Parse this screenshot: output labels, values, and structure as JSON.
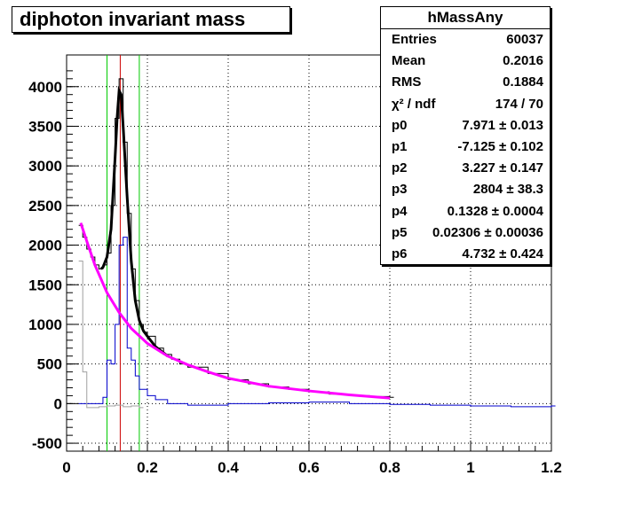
{
  "title": "diphoton invariant mass",
  "stats": {
    "name": "hMassAny",
    "rows": [
      {
        "label": "Entries",
        "value": "60037"
      },
      {
        "label": "Mean",
        "value": "0.2016"
      },
      {
        "label": "RMS",
        "value": "0.1884"
      },
      {
        "label": "χ² / ndf",
        "value": "174 / 70"
      },
      {
        "label": "p0",
        "value": "7.971 ± 0.013"
      },
      {
        "label": "p1",
        "value": "-7.125 ± 0.102"
      },
      {
        "label": "p2",
        "value": "3.227 ± 0.147"
      },
      {
        "label": "p3",
        "value": "2804 ± 38.3"
      },
      {
        "label": "p4",
        "value": "0.1328 ± 0.0004"
      },
      {
        "label": "p5",
        "value": "0.02306 ± 0.00036"
      },
      {
        "label": "p6",
        "value": "4.732 ± 0.424"
      }
    ]
  },
  "colors": {
    "total_hist": "#000000",
    "background_sub_hist": "#0000cc",
    "sideband_hist": "#a0a0a0",
    "fit_curve": "#000000",
    "background_curve": "#ff00ff",
    "window_lines": "#00cc00",
    "peak_line": "#cc0000"
  },
  "chart_data": {
    "type": "line",
    "title": "diphoton invariant mass",
    "xlabel": "",
    "ylabel": "",
    "xlim": [
      0,
      1.2
    ],
    "ylim": [
      -600,
      4400
    ],
    "xticks": [
      "0",
      "0.2",
      "0.4",
      "0.6",
      "0.8",
      "1",
      "1.2"
    ],
    "yticks": [
      "-500",
      "0",
      "500",
      "1000",
      "1500",
      "2000",
      "2500",
      "3000",
      "3500",
      "4000"
    ],
    "grid": true,
    "vertical_lines": {
      "window_low": 0.1,
      "window_high": 0.18,
      "peak": 0.1328
    },
    "series": [
      {
        "style": "histogram",
        "color_key": "total_hist",
        "x": [
          0.03,
          0.04,
          0.05,
          0.06,
          0.07,
          0.08,
          0.09,
          0.1,
          0.11,
          0.12,
          0.13,
          0.14,
          0.15,
          0.16,
          0.17,
          0.18,
          0.19,
          0.2,
          0.22,
          0.24,
          0.26,
          0.28,
          0.3,
          0.35,
          0.4,
          0.45,
          0.5,
          0.55,
          0.6,
          0.65,
          0.7,
          0.75,
          0.8
        ],
        "y": [
          2250,
          2100,
          1950,
          1850,
          1750,
          1700,
          1750,
          1900,
          2500,
          3600,
          4100,
          3300,
          2400,
          1700,
          1300,
          1000,
          900,
          850,
          700,
          620,
          560,
          500,
          460,
          380,
          300,
          250,
          210,
          180,
          150,
          120,
          100,
          90,
          80
        ]
      },
      {
        "style": "histogram",
        "color_key": "background_sub_hist",
        "x": [
          0.03,
          0.05,
          0.07,
          0.09,
          0.1,
          0.11,
          0.12,
          0.13,
          0.14,
          0.15,
          0.16,
          0.17,
          0.18,
          0.2,
          0.22,
          0.25,
          0.3,
          0.4,
          0.5,
          0.6,
          0.7,
          0.8,
          0.9,
          1.0,
          1.1,
          1.2
        ],
        "y": [
          0,
          0,
          0,
          80,
          550,
          500,
          1000,
          2000,
          2100,
          700,
          550,
          350,
          180,
          100,
          50,
          0,
          -20,
          0,
          10,
          20,
          0,
          -10,
          -20,
          -30,
          -40,
          -30
        ]
      },
      {
        "style": "histogram",
        "color_key": "sideband_hist",
        "x": [
          0.03,
          0.04,
          0.05,
          0.06,
          0.08,
          0.1,
          0.12,
          0.14,
          0.16,
          0.18
        ],
        "y": [
          1800,
          400,
          -50,
          -50,
          -40,
          -30,
          -20,
          -40,
          -30,
          -50
        ]
      },
      {
        "style": "curve",
        "name": "",
        "color_key": "fit_curve",
        "x": [
          0.085,
          0.09,
          0.1,
          0.11,
          0.12,
          0.125,
          0.13,
          0.135,
          0.14,
          0.15,
          0.16,
          0.17,
          0.18,
          0.19,
          0.2,
          0.22,
          0.25
        ],
        "y": [
          1700,
          1720,
          1850,
          2200,
          3100,
          3600,
          3950,
          3900,
          3500,
          2600,
          1800,
          1300,
          1050,
          920,
          850,
          720,
          600
        ]
      },
      {
        "style": "curve",
        "name": "",
        "color_key": "background_curve",
        "x": [
          0.035,
          0.05,
          0.07,
          0.1,
          0.13,
          0.16,
          0.2,
          0.25,
          0.3,
          0.35,
          0.4,
          0.5,
          0.6,
          0.7,
          0.8
        ],
        "y": [
          2280,
          2050,
          1750,
          1400,
          1150,
          950,
          760,
          600,
          490,
          400,
          320,
          220,
          160,
          110,
          70
        ]
      }
    ]
  }
}
